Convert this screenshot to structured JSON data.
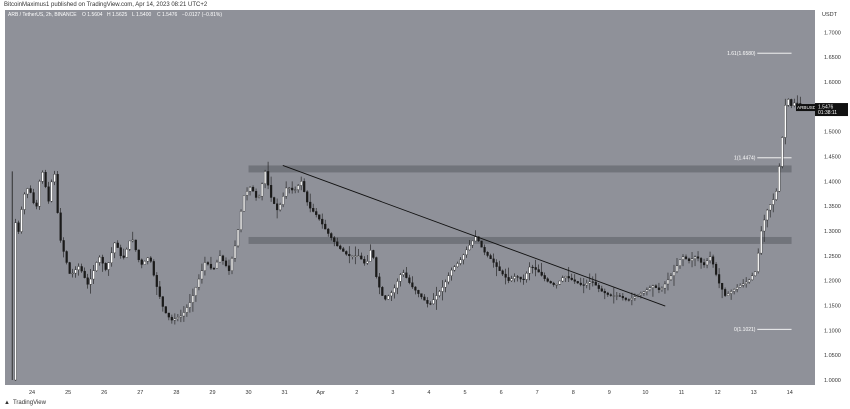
{
  "header": {
    "publisher_line": "BitcoinMaximus1 published on TradingView.com, Apr 14, 2023 08:21 UTC+2"
  },
  "footer": {
    "brand": "TradingView"
  },
  "colors": {
    "plot_background": "#8f9199",
    "candle_up": "#ffffff",
    "candle_down": "#1a1a1a",
    "zone_fill": "#6c6e76",
    "trendline": "#111111",
    "fib_line": "#ffffff",
    "price_tag_bg": "#111111"
  },
  "chart_data": {
    "type": "candlestick",
    "title": "ARB / TetherUS, 2h, BINANCE",
    "ohlc_readout": [
      "O 1.5604",
      "H 1.5625",
      "L 1.5400",
      "C 1.5476",
      "−0.0127 (−0.81%)"
    ],
    "y_axis_unit": "USDT",
    "ylim": [
      0.99,
      1.745
    ],
    "y_ticks": [
      "1.7000",
      "1.6500",
      "1.6000",
      "1.5500",
      "1.5000",
      "1.4500",
      "1.4000",
      "1.3500",
      "1.3000",
      "1.2500",
      "1.2000",
      "1.1500",
      "1.1000",
      "1.0500",
      "1.0000"
    ],
    "x_ticks": [
      {
        "label": "24",
        "t": 0.5
      },
      {
        "label": "25",
        "t": 1.5
      },
      {
        "label": "26",
        "t": 2.5
      },
      {
        "label": "27",
        "t": 3.5
      },
      {
        "label": "28",
        "t": 4.5
      },
      {
        "label": "29",
        "t": 5.5
      },
      {
        "label": "30",
        "t": 6.5
      },
      {
        "label": "31",
        "t": 7.5
      },
      {
        "label": "Apr",
        "t": 8.5
      },
      {
        "label": "2",
        "t": 9.5
      },
      {
        "label": "3",
        "t": 10.5
      },
      {
        "label": "4",
        "t": 11.5
      },
      {
        "label": "5",
        "t": 12.5
      },
      {
        "label": "6",
        "t": 13.5
      },
      {
        "label": "7",
        "t": 14.5
      },
      {
        "label": "8",
        "t": 15.5
      },
      {
        "label": "9",
        "t": 16.5
      },
      {
        "label": "10",
        "t": 17.5
      },
      {
        "label": "11",
        "t": 18.5
      },
      {
        "label": "12",
        "t": 19.5
      },
      {
        "label": "13",
        "t": 20.5
      },
      {
        "label": "14",
        "t": 21.5
      }
    ],
    "key_points": [
      [
        -0.1,
        1.0
      ],
      [
        0.05,
        1.33
      ],
      [
        0.15,
        1.29
      ],
      [
        0.3,
        1.37
      ],
      [
        0.45,
        1.39
      ],
      [
        0.65,
        1.34
      ],
      [
        0.8,
        1.43
      ],
      [
        1.0,
        1.36
      ],
      [
        1.15,
        1.43
      ],
      [
        1.3,
        1.29
      ],
      [
        1.6,
        1.21
      ],
      [
        1.85,
        1.23
      ],
      [
        2.1,
        1.19
      ],
      [
        2.4,
        1.25
      ],
      [
        2.6,
        1.22
      ],
      [
        2.85,
        1.28
      ],
      [
        3.05,
        1.24
      ],
      [
        3.3,
        1.29
      ],
      [
        3.55,
        1.23
      ],
      [
        3.8,
        1.25
      ],
      [
        3.95,
        1.2
      ],
      [
        4.2,
        1.14
      ],
      [
        4.4,
        1.12
      ],
      [
        4.7,
        1.13
      ],
      [
        4.95,
        1.16
      ],
      [
        5.15,
        1.2
      ],
      [
        5.35,
        1.24
      ],
      [
        5.55,
        1.22
      ],
      [
        5.75,
        1.25
      ],
      [
        6.0,
        1.22
      ],
      [
        6.2,
        1.28
      ],
      [
        6.4,
        1.37
      ],
      [
        6.6,
        1.39
      ],
      [
        6.8,
        1.36
      ],
      [
        7.0,
        1.42
      ],
      [
        7.15,
        1.37
      ],
      [
        7.35,
        1.34
      ],
      [
        7.6,
        1.39
      ],
      [
        7.8,
        1.38
      ],
      [
        8.0,
        1.4
      ],
      [
        8.2,
        1.35
      ],
      [
        8.45,
        1.33
      ],
      [
        8.7,
        1.3
      ],
      [
        9.0,
        1.27
      ],
      [
        9.3,
        1.25
      ],
      [
        9.6,
        1.25
      ],
      [
        9.8,
        1.23
      ],
      [
        9.95,
        1.27
      ],
      [
        10.1,
        1.2
      ],
      [
        10.3,
        1.16
      ],
      [
        10.55,
        1.18
      ],
      [
        10.8,
        1.22
      ],
      [
        11.05,
        1.19
      ],
      [
        11.3,
        1.17
      ],
      [
        11.55,
        1.15
      ],
      [
        11.75,
        1.17
      ],
      [
        11.95,
        1.19
      ],
      [
        12.15,
        1.22
      ],
      [
        12.4,
        1.24
      ],
      [
        12.65,
        1.27
      ],
      [
        12.85,
        1.29
      ],
      [
        13.05,
        1.26
      ],
      [
        13.3,
        1.24
      ],
      [
        13.5,
        1.22
      ],
      [
        13.75,
        1.2
      ],
      [
        13.95,
        1.21
      ],
      [
        14.15,
        1.2
      ],
      [
        14.35,
        1.23
      ],
      [
        14.55,
        1.22
      ],
      [
        14.8,
        1.2
      ],
      [
        15.05,
        1.19
      ],
      [
        15.3,
        1.21
      ],
      [
        15.55,
        1.2
      ],
      [
        15.8,
        1.19
      ],
      [
        16.05,
        1.2
      ],
      [
        16.3,
        1.18
      ],
      [
        16.55,
        1.17
      ],
      [
        16.8,
        1.17
      ],
      [
        17.05,
        1.16
      ],
      [
        17.3,
        1.17
      ],
      [
        17.55,
        1.18
      ],
      [
        17.75,
        1.19
      ],
      [
        17.95,
        1.18
      ],
      [
        18.15,
        1.2
      ],
      [
        18.35,
        1.22
      ],
      [
        18.55,
        1.25
      ],
      [
        18.75,
        1.24
      ],
      [
        18.95,
        1.25
      ],
      [
        19.15,
        1.23
      ],
      [
        19.35,
        1.25
      ],
      [
        19.55,
        1.2
      ],
      [
        19.75,
        1.17
      ],
      [
        19.95,
        1.18
      ],
      [
        20.15,
        1.19
      ],
      [
        20.4,
        1.2
      ],
      [
        20.6,
        1.22
      ],
      [
        20.75,
        1.3
      ],
      [
        20.9,
        1.34
      ],
      [
        21.05,
        1.36
      ],
      [
        21.15,
        1.37
      ],
      [
        21.25,
        1.43
      ],
      [
        21.35,
        1.5
      ],
      [
        21.45,
        1.58
      ],
      [
        21.55,
        1.55
      ],
      [
        21.7,
        1.56
      ],
      [
        21.9,
        1.5476
      ]
    ],
    "horizontal_zones": [
      {
        "low": 1.418,
        "high": 1.432
      },
      {
        "low": 1.274,
        "high": 1.288
      }
    ],
    "trendline": {
      "from": [
        7.45,
        1.432
      ],
      "to": [
        18.05,
        1.149
      ]
    },
    "fib_levels": [
      {
        "label": "1.61(1.6580)",
        "value": 1.658
      },
      {
        "label": "1(1.4474)",
        "value": 1.4474
      },
      {
        "label": "0(1.1021)",
        "value": 1.1021
      }
    ],
    "last_price": {
      "symbol": "ARBUSDT",
      "price": "1.5476",
      "countdown": "01:38:11",
      "value": 1.5476
    }
  }
}
